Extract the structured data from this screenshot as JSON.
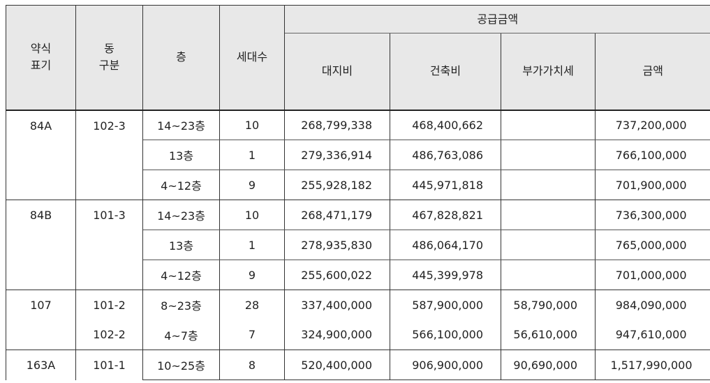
{
  "headers": {
    "col1": "약식\n표기",
    "col1_l1": "약식",
    "col1_l2": "표기",
    "col2_l1": "동",
    "col2_l2": "구분",
    "col3": "층",
    "col4": "세대수",
    "group": "공급금액",
    "sub": [
      "대지비",
      "건축비",
      "부가가치세",
      "금액"
    ]
  },
  "groups": [
    {
      "type": "84A",
      "dong": "102-3",
      "rows": [
        {
          "floor": "14~23층",
          "units": "10",
          "land": "268,799,338",
          "build": "468,400,662",
          "vat": "",
          "total": "737,200,000"
        },
        {
          "floor": "13층",
          "units": "1",
          "land": "279,336,914",
          "build": "486,763,086",
          "vat": "",
          "total": "766,100,000"
        },
        {
          "floor": "4~12층",
          "units": "9",
          "land": "255,928,182",
          "build": "445,971,818",
          "vat": "",
          "total": "701,900,000"
        }
      ]
    },
    {
      "type": "84B",
      "dong": "101-3",
      "rows": [
        {
          "floor": "14~23층",
          "units": "10",
          "land": "268,471,179",
          "build": "467,828,821",
          "vat": "",
          "total": "736,300,000"
        },
        {
          "floor": "13층",
          "units": "1",
          "land": "278,935,830",
          "build": "486,064,170",
          "vat": "",
          "total": "765,000,000"
        },
        {
          "floor": "4~12층",
          "units": "9",
          "land": "255,600,022",
          "build": "445,399,978",
          "vat": "",
          "total": "701,000,000"
        }
      ]
    },
    {
      "type": "107",
      "rows": [
        {
          "dong": "101-2",
          "floor": "8~23층",
          "units": "28",
          "land": "337,400,000",
          "build": "587,900,000",
          "vat": "58,790,000",
          "total": "984,090,000"
        },
        {
          "dong": "102-2",
          "floor": "4~7층",
          "units": "7",
          "land": "324,900,000",
          "build": "566,100,000",
          "vat": "56,610,000",
          "total": "947,610,000"
        }
      ]
    },
    {
      "type": "163A",
      "rows": [
        {
          "dong": "101-1",
          "floor": "10~25층",
          "units": "8",
          "land": "520,400,000",
          "build": "906,900,000",
          "vat": "90,690,000",
          "total": "1,517,990,000"
        }
      ]
    }
  ]
}
